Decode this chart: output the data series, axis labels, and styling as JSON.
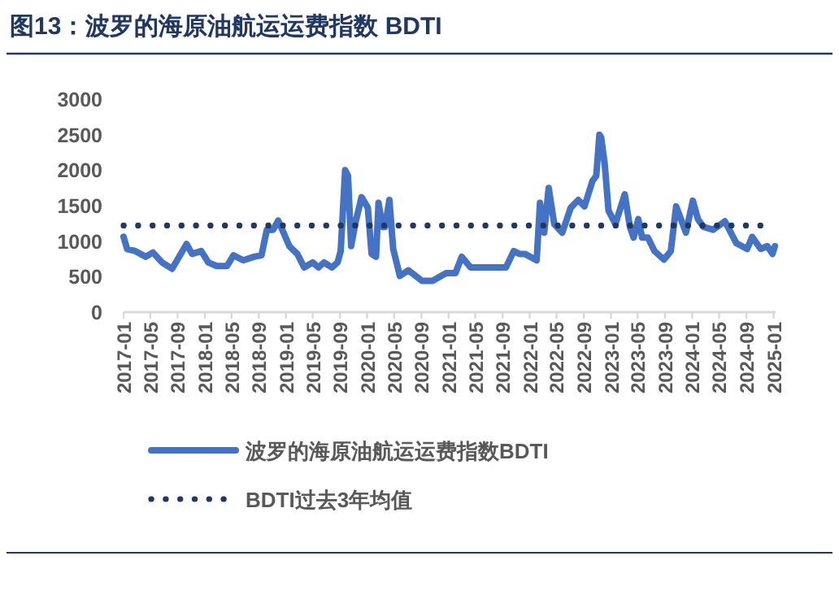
{
  "chart_data": {
    "type": "line",
    "title": "图13：波罗的海原油航运运费指数 BDTI",
    "x": [
      "2017-01-01",
      "2017-01-17",
      "2017-02-23",
      "2017-04-11",
      "2017-05-13",
      "2017-06-23",
      "2017-08-07",
      "2017-10-11",
      "2017-11-05",
      "2017-12-16",
      "2018-01-17",
      "2018-02-23",
      "2018-04-11",
      "2018-05-10",
      "2018-06-23",
      "2018-08-11",
      "2018-09-13",
      "2018-10-07",
      "2018-11-04",
      "2018-11-27",
      "2018-12-21",
      "2019-01-16",
      "2019-02-21",
      "2019-03-24",
      "2019-05-01",
      "2019-05-27",
      "2019-06-21",
      "2019-07-27",
      "2019-08-21",
      "2019-09-04",
      "2019-09-24",
      "2019-10-07",
      "2019-10-21",
      "2019-11-10",
      "2019-12-07",
      "2020-01-04",
      "2020-01-21",
      "2020-02-10",
      "2020-02-21",
      "2020-03-10",
      "2020-03-21",
      "2020-04-10",
      "2020-04-27",
      "2020-05-27",
      "2020-07-04",
      "2020-09-04",
      "2020-10-21",
      "2020-12-21",
      "2021-02-01",
      "2021-03-01",
      "2021-04-10",
      "2021-06-21",
      "2021-09-16",
      "2021-10-21",
      "2021-11-16",
      "2021-12-10",
      "2022-02-01",
      "2022-02-16",
      "2022-03-07",
      "2022-03-27",
      "2022-04-21",
      "2022-05-27",
      "2022-07-04",
      "2022-08-07",
      "2022-09-04",
      "2022-10-10",
      "2022-10-27",
      "2022-11-10",
      "2022-11-18",
      "2022-12-04",
      "2022-12-21",
      "2023-01-21",
      "2023-03-04",
      "2023-03-27",
      "2023-04-13",
      "2023-05-04",
      "2023-05-21",
      "2023-06-16",
      "2023-07-16",
      "2023-08-27",
      "2023-09-27",
      "2023-10-21",
      "2023-12-04",
      "2024-01-04",
      "2024-01-27",
      "2024-02-21",
      "2024-04-04",
      "2024-05-27",
      "2024-07-18",
      "2024-09-04",
      "2024-09-27",
      "2024-11-04",
      "2024-12-04",
      "2024-12-27",
      "2025-01-07"
    ],
    "series": [
      {
        "name": "波罗的海原油航运运费指数BDTI",
        "color": "#4472c4",
        "values": [
          1060,
          890,
          860,
          780,
          840,
          700,
          610,
          960,
          820,
          860,
          700,
          650,
          650,
          800,
          730,
          780,
          800,
          1160,
          1160,
          1290,
          1120,
          930,
          820,
          630,
          700,
          630,
          700,
          630,
          700,
          860,
          2000,
          1920,
          930,
          1270,
          1620,
          1470,
          820,
          780,
          1540,
          1200,
          1200,
          1580,
          890,
          510,
          590,
          440,
          440,
          550,
          550,
          780,
          630,
          630,
          630,
          860,
          820,
          820,
          730,
          1540,
          1120,
          1750,
          1240,
          1120,
          1470,
          1580,
          1490,
          1850,
          1920,
          2500,
          2460,
          2080,
          1430,
          1240,
          1660,
          1200,
          1050,
          1310,
          1050,
          1050,
          860,
          740,
          860,
          1490,
          1120,
          1570,
          1310,
          1200,
          1160,
          1280,
          970,
          890,
          1060,
          890,
          930,
          820,
          930
        ]
      },
      {
        "name": "BDTI过去3年均值",
        "color": "#1f3864",
        "line_style": "dotted",
        "x": [
          "2017-01-01",
          "2025-01-01"
        ],
        "values": [
          1220,
          1220
        ]
      }
    ],
    "xlim": [
      "2017-01-01",
      "2025-01-10"
    ],
    "xticks": [
      "2017-01",
      "2017-05",
      "2017-09",
      "2018-01",
      "2018-05",
      "2018-09",
      "2019-01",
      "2019-05",
      "2019-09",
      "2020-01",
      "2020-05",
      "2020-09",
      "2021-01",
      "2021-05",
      "2021-09",
      "2022-01",
      "2022-05",
      "2022-09",
      "2023-01",
      "2023-05",
      "2023-09",
      "2024-01",
      "2024-05",
      "2024-09",
      "2025-01"
    ],
    "ylim": [
      0,
      3000
    ],
    "yticks": [
      0,
      500,
      1000,
      1500,
      2000,
      2500,
      3000
    ],
    "legend": "bottom",
    "grid": false
  }
}
